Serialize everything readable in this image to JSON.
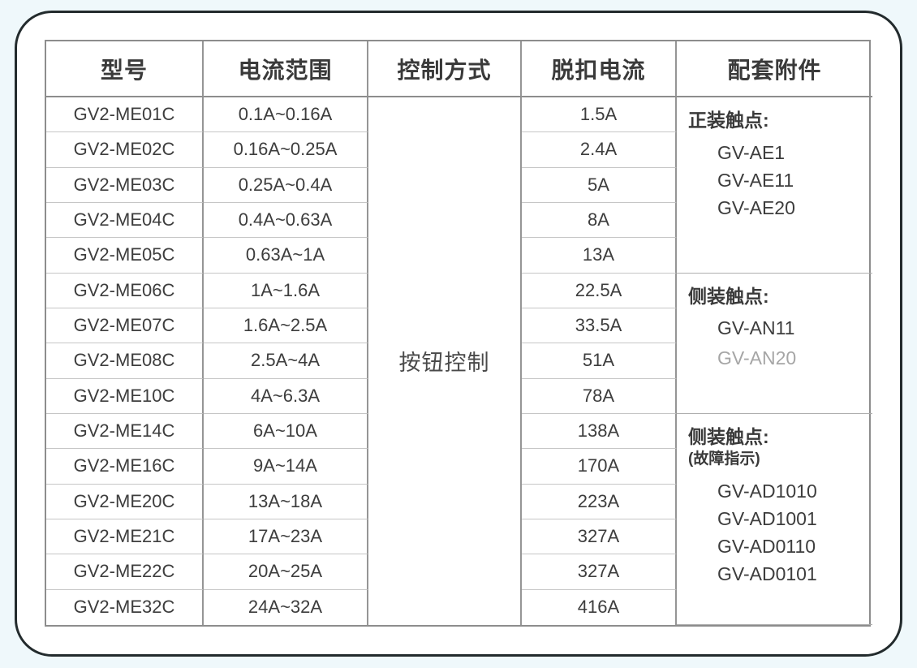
{
  "table": {
    "headers": {
      "model": "型号",
      "range": "电流范围",
      "control": "控制方式",
      "trip": "脱扣电流",
      "accessory": "配套附件"
    },
    "control_value": "按钮控制",
    "rows": [
      {
        "model": "GV2-ME01C",
        "range": "0.1A~0.16A",
        "trip": "1.5A"
      },
      {
        "model": "GV2-ME02C",
        "range": "0.16A~0.25A",
        "trip": "2.4A"
      },
      {
        "model": "GV2-ME03C",
        "range": "0.25A~0.4A",
        "trip": "5A"
      },
      {
        "model": "GV2-ME04C",
        "range": "0.4A~0.63A",
        "trip": "8A"
      },
      {
        "model": "GV2-ME05C",
        "range": "0.63A~1A",
        "trip": "13A"
      },
      {
        "model": "GV2-ME06C",
        "range": "1A~1.6A",
        "trip": "22.5A"
      },
      {
        "model": "GV2-ME07C",
        "range": "1.6A~2.5A",
        "trip": "33.5A"
      },
      {
        "model": "GV2-ME08C",
        "range": "2.5A~4A",
        "trip": "51A"
      },
      {
        "model": "GV2-ME10C",
        "range": "4A~6.3A",
        "trip": "78A"
      },
      {
        "model": "GV2-ME14C",
        "range": "6A~10A",
        "trip": "138A"
      },
      {
        "model": "GV2-ME16C",
        "range": "9A~14A",
        "trip": "170A"
      },
      {
        "model": "GV2-ME20C",
        "range": "13A~18A",
        "trip": "223A"
      },
      {
        "model": "GV2-ME21C",
        "range": "17A~23A",
        "trip": "327A"
      },
      {
        "model": "GV2-ME22C",
        "range": "20A~25A",
        "trip": "327A"
      },
      {
        "model": "GV2-ME32C",
        "range": "24A~32A",
        "trip": "416A"
      }
    ],
    "accessory_sections": [
      {
        "title": "正装触点:",
        "subtitle": "",
        "items": [
          "GV-AE1",
          "GV-AE11",
          "GV-AE20"
        ]
      },
      {
        "title": "侧装触点:",
        "subtitle": "",
        "items": [
          "GV-AN11",
          "GV-AN20"
        ]
      },
      {
        "title": "侧装触点:",
        "subtitle": "(故障指示)",
        "items": [
          "GV-AD1010",
          "GV-AD1001",
          "GV-AD0110",
          "GV-AD0101"
        ]
      }
    ]
  },
  "colors": {
    "page_background": "#eff8fb",
    "card_background": "#ffffff",
    "card_border": "#232b2d",
    "table_border": "#8d8d8d",
    "row_line": "#c6c6c6",
    "text": "#3d3d3d",
    "muted_text": "#a6a6a6"
  }
}
